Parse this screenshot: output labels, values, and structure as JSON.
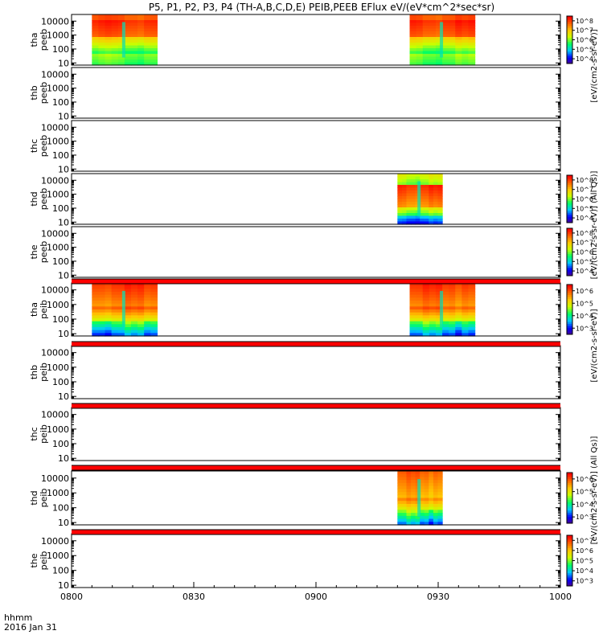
{
  "title": "P5, P1, P2, P3, P4 (TH-A,B,C,D,E) PEIB,PEEB EFlux eV/(eV*cm^2*sec*sr)",
  "xaxis": {
    "ticks": [
      "0800",
      "0830",
      "0900",
      "0930",
      "1000"
    ],
    "label1": "hhmm",
    "label2": "2016 Jan 31"
  },
  "colorbar_labels": {
    "peeb": "[eV/(cm2-s-sr-eV)]",
    "peeb_all": "[eV/(cm2-s-sr-eV)] (All Qs)]",
    "peib": "[eV/(cm2-s-sr-eV)]",
    "peib_all": "[eV/(cm2-s-sr-eV)] (All Qs)]"
  },
  "colors": {
    "spectrogram_scale": [
      "#500082",
      "#0000ff",
      "#00c8ff",
      "#00ff64",
      "#c8ff00",
      "#ffc800",
      "#ff6400",
      "#ff0000"
    ],
    "flag_bar": "#ff0000",
    "background": "#ffffff"
  },
  "chart_data": {
    "type": "heatmap",
    "x_unit": "hhmm",
    "xlim": [
      "0800",
      "1000"
    ],
    "y_scale": "log",
    "yticks": [
      "10",
      "100",
      "1000",
      "10000"
    ],
    "panels": [
      {
        "id": "tha_peeb",
        "label": [
          "tha",
          "peeb"
        ],
        "flag_bar": false,
        "colorbar": {
          "ticks": [
            "10^8",
            "10^7",
            "10^6",
            "10^5",
            "10^4"
          ]
        },
        "intervals": [
          {
            "start": "08:05",
            "end": "08:21",
            "profile": "electron_a",
            "ymin": 7,
            "ymax": 30000
          },
          {
            "start": "09:23",
            "end": "09:39",
            "profile": "electron_a",
            "ymin": 7,
            "ymax": 30000
          }
        ]
      },
      {
        "id": "thb_peeb",
        "label": [
          "thb",
          "peeb"
        ],
        "flag_bar": false,
        "colorbar": null,
        "intervals": []
      },
      {
        "id": "thc_peeb",
        "label": [
          "thc",
          "peeb"
        ],
        "flag_bar": false,
        "colorbar": null,
        "intervals": []
      },
      {
        "id": "thd_peeb",
        "label": [
          "thd",
          "peeb"
        ],
        "flag_bar": false,
        "colorbar": {
          "ticks": [
            "10^8",
            "10^7",
            "10^6",
            "10^5",
            "10^4"
          ]
        },
        "intervals": [
          {
            "start": "09:20",
            "end": "09:31",
            "profile": "electron_d",
            "ymin": 7,
            "ymax": 30000
          }
        ]
      },
      {
        "id": "the_peeb",
        "label": [
          "the",
          "peeb"
        ],
        "flag_bar": false,
        "colorbar": {
          "ticks": [
            "10^8",
            "10^7",
            "10^6",
            "10^5",
            "10^4"
          ]
        },
        "intervals": []
      },
      {
        "id": "tha_peib",
        "label": [
          "tha",
          "peib"
        ],
        "flag_bar": true,
        "colorbar": {
          "ticks": [
            "10^6",
            "10^5",
            "10^4",
            "10^3"
          ]
        },
        "intervals": [
          {
            "start": "08:05",
            "end": "08:21",
            "profile": "ion",
            "ymin": 7,
            "ymax": 30000
          },
          {
            "start": "09:23",
            "end": "09:39",
            "profile": "ion",
            "ymin": 7,
            "ymax": 30000
          }
        ]
      },
      {
        "id": "thb_peib",
        "label": [
          "thb",
          "peib"
        ],
        "flag_bar": true,
        "colorbar": null,
        "intervals": []
      },
      {
        "id": "thc_peib",
        "label": [
          "thc",
          "peib"
        ],
        "flag_bar": true,
        "colorbar": null,
        "intervals": []
      },
      {
        "id": "thd_peib",
        "label": [
          "thd",
          "peib"
        ],
        "flag_bar": true,
        "colorbar": {
          "ticks": [
            "10^6",
            "10^5",
            "10^4",
            "10^3"
          ]
        },
        "intervals": [
          {
            "start": "09:20",
            "end": "09:31",
            "profile": "ion_d",
            "ymin": 7,
            "ymax": 30000
          }
        ]
      },
      {
        "id": "the_peib",
        "label": [
          "the",
          "peib"
        ],
        "flag_bar": true,
        "colorbar": {
          "ticks": [
            "10^7",
            "10^6",
            "10^5",
            "10^4",
            "10^3"
          ]
        },
        "intervals": []
      }
    ]
  }
}
